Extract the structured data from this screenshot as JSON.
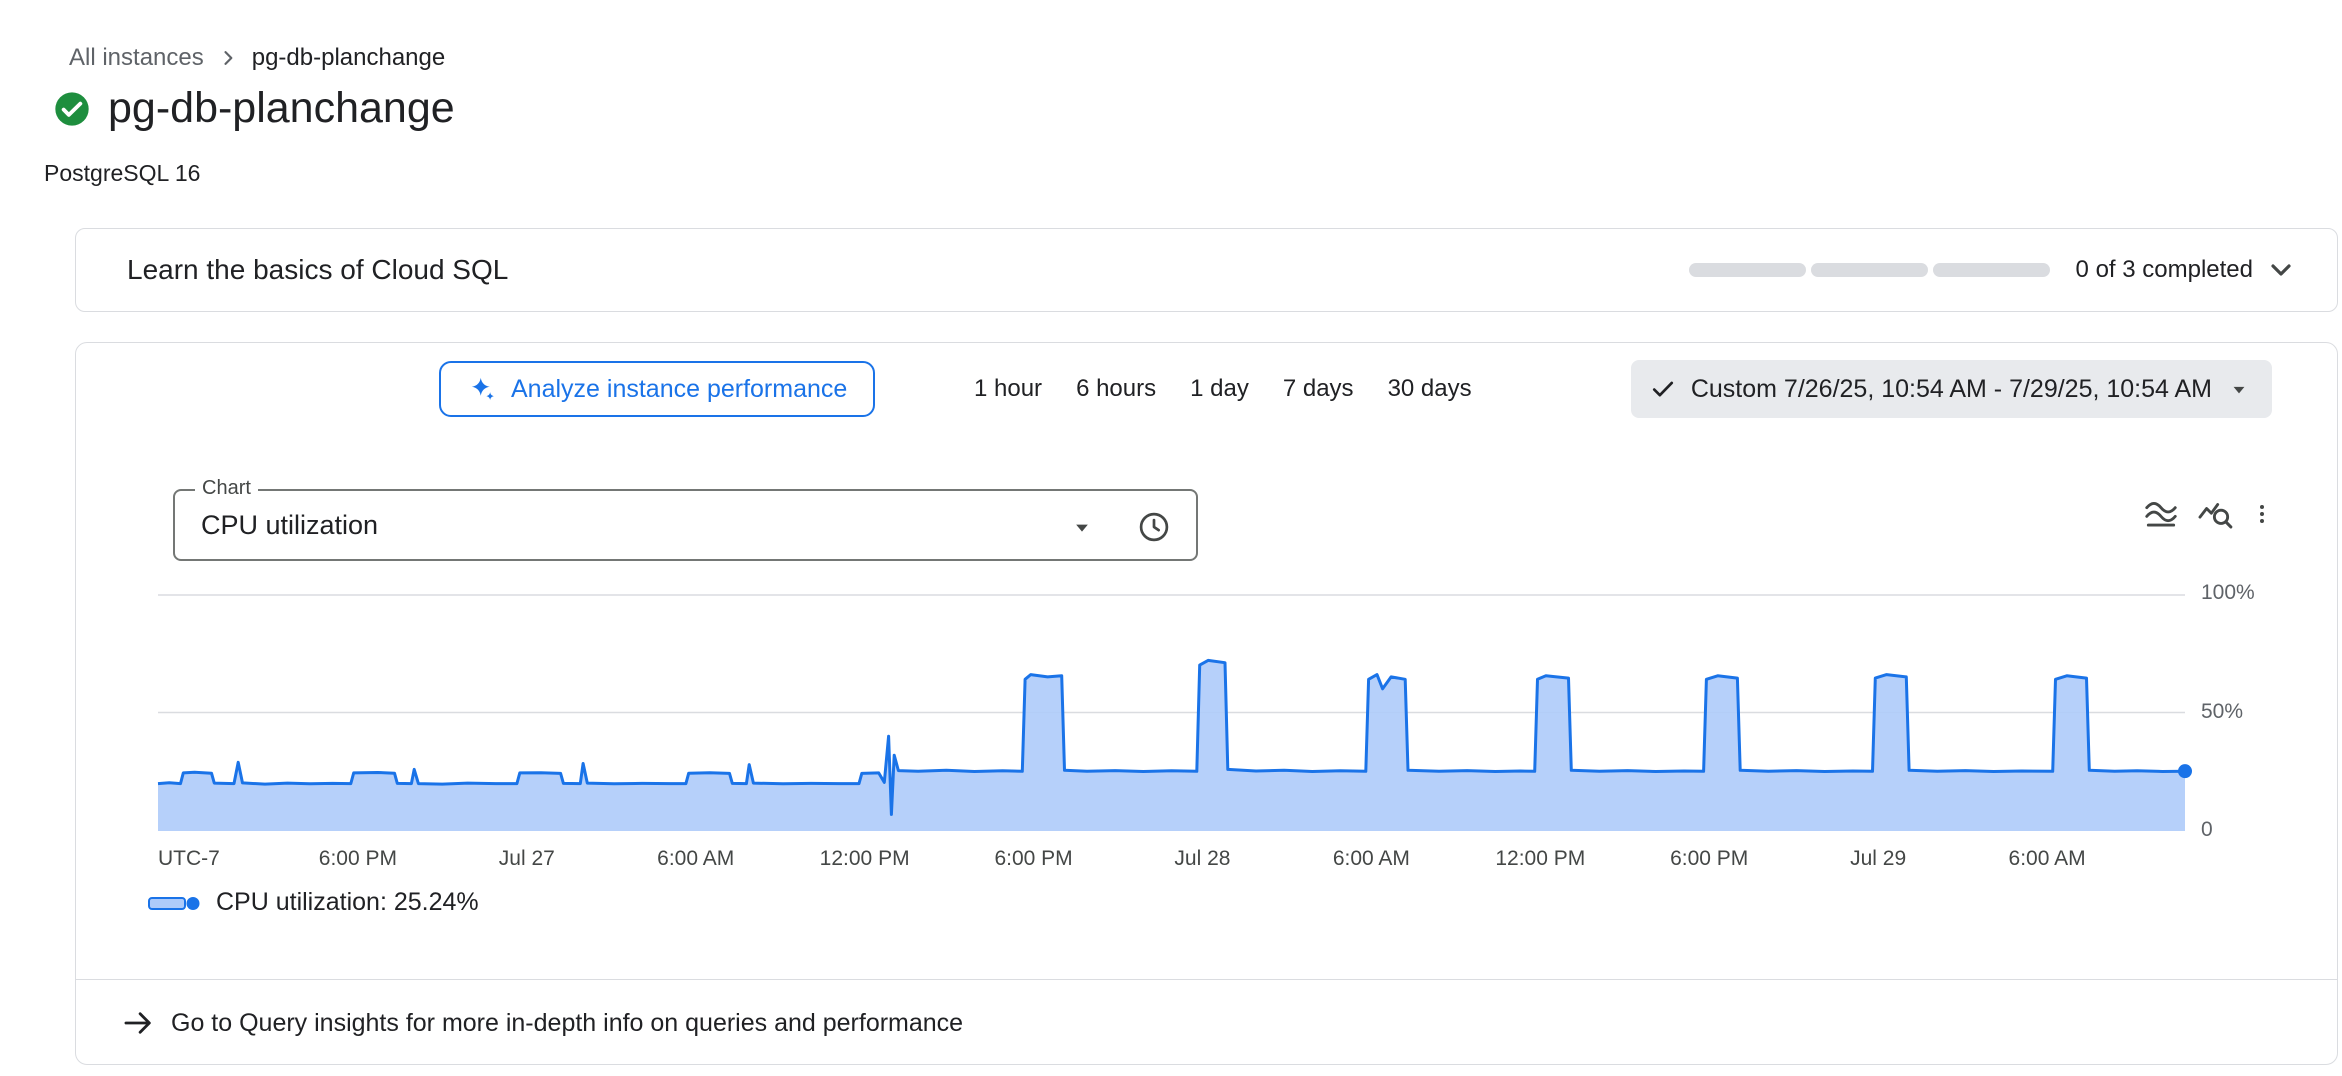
{
  "breadcrumb": {
    "parent": "All instances",
    "current": "pg-db-planchange"
  },
  "header": {
    "title": "pg-db-planchange",
    "subtitle": "PostgreSQL 16",
    "status": "running"
  },
  "learn_card": {
    "title": "Learn the basics of Cloud SQL",
    "progress_label": "0 of 3 completed",
    "segments_total": 3,
    "segments_completed": 0
  },
  "toolbar": {
    "analyze_label": "Analyze instance performance",
    "ranges": [
      "1 hour",
      "6 hours",
      "1 day",
      "7 days",
      "30 days"
    ],
    "custom_label": "Custom 7/26/25, 10:54 AM - 7/29/25, 10:54 AM"
  },
  "chart_controls": {
    "select_label": "Chart",
    "select_value": "CPU utilization"
  },
  "legend": {
    "label": "CPU utilization: 25.24%"
  },
  "insights": {
    "label": "Go to Query insights for more in-depth info on queries and performance"
  },
  "colors": {
    "accent_blue": "#1a73e8",
    "status_green": "#1e8e3e",
    "border_gray": "#dadce0",
    "text_gray": "#5f6368",
    "pill_gray": "#e8eaed"
  },
  "chart_data": {
    "type": "area",
    "title": "CPU utilization",
    "xlabel": "UTC-7",
    "ylabel": "CPU utilization (%)",
    "x_range_hours": [
      0,
      72
    ],
    "ylim": [
      0,
      100
    ],
    "grid": true,
    "legend_position": "bottom-left",
    "colors": {
      "line": "#1a73e8",
      "fill": "#aecbfa",
      "fill_opacity": 0.9,
      "grid": "#dadce0",
      "dot": "#1a73e8"
    },
    "yticks": [
      {
        "value": 100,
        "label": "100%"
      },
      {
        "value": 50,
        "label": "50%"
      },
      {
        "value": 0,
        "label": "0"
      }
    ],
    "xticks": [
      {
        "hours": 0,
        "label": "UTC-7"
      },
      {
        "hours": 7.1,
        "label": "6:00 PM"
      },
      {
        "hours": 13.1,
        "label": "Jul 27"
      },
      {
        "hours": 19.1,
        "label": "6:00 AM"
      },
      {
        "hours": 25.1,
        "label": "12:00 PM"
      },
      {
        "hours": 31.1,
        "label": "6:00 PM"
      },
      {
        "hours": 37.1,
        "label": "Jul 28"
      },
      {
        "hours": 43.1,
        "label": "6:00 AM"
      },
      {
        "hours": 49.1,
        "label": "12:00 PM"
      },
      {
        "hours": 55.1,
        "label": "6:00 PM"
      },
      {
        "hours": 61.1,
        "label": "Jul 29"
      },
      {
        "hours": 67.1,
        "label": "6:00 AM"
      }
    ],
    "series": [
      {
        "name": "CPU utilization",
        "current_value_label": "25.24%",
        "points": [
          [
            0,
            20
          ],
          [
            0.4,
            20.4
          ],
          [
            0.8,
            20
          ],
          [
            0.9,
            24.5
          ],
          [
            1.3,
            24.8
          ],
          [
            1.9,
            24.4
          ],
          [
            2.0,
            20.2
          ],
          [
            2.7,
            20
          ],
          [
            2.85,
            29
          ],
          [
            3.0,
            20.3
          ],
          [
            3.8,
            19.8
          ],
          [
            4.6,
            20.2
          ],
          [
            5.4,
            19.9
          ],
          [
            6.2,
            20.1
          ],
          [
            6.85,
            20
          ],
          [
            6.95,
            24.5
          ],
          [
            7.8,
            24.7
          ],
          [
            8.4,
            24.4
          ],
          [
            8.5,
            20.1
          ],
          [
            9.0,
            20
          ],
          [
            9.1,
            26
          ],
          [
            9.25,
            20
          ],
          [
            10.1,
            19.8
          ],
          [
            11.0,
            20.2
          ],
          [
            12.0,
            20
          ],
          [
            12.75,
            20
          ],
          [
            12.85,
            24.5
          ],
          [
            13.6,
            24.6
          ],
          [
            14.3,
            24.3
          ],
          [
            14.4,
            20.1
          ],
          [
            15.0,
            20
          ],
          [
            15.1,
            28.5
          ],
          [
            15.25,
            20.2
          ],
          [
            16.2,
            19.9
          ],
          [
            17.2,
            20.1
          ],
          [
            18.2,
            20
          ],
          [
            18.75,
            20
          ],
          [
            18.85,
            24.4
          ],
          [
            19.6,
            24.6
          ],
          [
            20.3,
            24.3
          ],
          [
            20.4,
            20.1
          ],
          [
            20.9,
            20
          ],
          [
            21.0,
            28
          ],
          [
            21.15,
            20.2
          ],
          [
            22.2,
            19.9
          ],
          [
            23.2,
            20.1
          ],
          [
            24.2,
            20
          ],
          [
            24.9,
            20
          ],
          [
            25.0,
            24.3
          ],
          [
            25.6,
            24.5
          ],
          [
            25.8,
            20.5
          ],
          [
            25.95,
            40
          ],
          [
            26.05,
            7
          ],
          [
            26.15,
            32
          ],
          [
            26.3,
            25.5
          ],
          [
            27.0,
            25.2
          ],
          [
            28.0,
            25.6
          ],
          [
            29.0,
            25.1
          ],
          [
            30.0,
            25.4
          ],
          [
            30.7,
            25.2
          ],
          [
            30.8,
            64
          ],
          [
            31.0,
            66
          ],
          [
            31.6,
            65
          ],
          [
            32.1,
            65.5
          ],
          [
            32.2,
            25.6
          ],
          [
            33.0,
            25.2
          ],
          [
            34.0,
            25.5
          ],
          [
            35.0,
            25.1
          ],
          [
            36.0,
            25.4
          ],
          [
            36.9,
            25.2
          ],
          [
            37.0,
            70
          ],
          [
            37.3,
            72
          ],
          [
            37.9,
            71
          ],
          [
            38.0,
            26
          ],
          [
            39.0,
            25.3
          ],
          [
            40.0,
            25.6
          ],
          [
            41.0,
            25.1
          ],
          [
            42.0,
            25.4
          ],
          [
            42.9,
            25.2
          ],
          [
            43.0,
            64
          ],
          [
            43.3,
            66
          ],
          [
            43.5,
            60
          ],
          [
            43.8,
            65
          ],
          [
            44.3,
            64
          ],
          [
            44.4,
            25.6
          ],
          [
            45.5,
            25.2
          ],
          [
            46.5,
            25.5
          ],
          [
            47.5,
            25.1
          ],
          [
            48.4,
            25.3
          ],
          [
            48.9,
            25.2
          ],
          [
            49.0,
            64
          ],
          [
            49.3,
            65.5
          ],
          [
            50.1,
            64.5
          ],
          [
            50.2,
            25.6
          ],
          [
            51.2,
            25.2
          ],
          [
            52.2,
            25.5
          ],
          [
            53.2,
            25.1
          ],
          [
            54.2,
            25.3
          ],
          [
            54.9,
            25.2
          ],
          [
            55.0,
            64
          ],
          [
            55.4,
            65.5
          ],
          [
            56.1,
            64.5
          ],
          [
            56.2,
            25.6
          ],
          [
            57.2,
            25.2
          ],
          [
            58.2,
            25.5
          ],
          [
            59.2,
            25.1
          ],
          [
            60.2,
            25.3
          ],
          [
            60.9,
            25.2
          ],
          [
            61.0,
            64.5
          ],
          [
            61.4,
            66
          ],
          [
            62.1,
            65
          ],
          [
            62.2,
            25.6
          ],
          [
            63.2,
            25.2
          ],
          [
            64.2,
            25.5
          ],
          [
            65.2,
            25.1
          ],
          [
            66.2,
            25.3
          ],
          [
            67.3,
            25.2
          ],
          [
            67.4,
            64
          ],
          [
            67.8,
            65.5
          ],
          [
            68.5,
            64.5
          ],
          [
            68.6,
            25.6
          ],
          [
            69.5,
            25.2
          ],
          [
            70.3,
            25.4
          ],
          [
            71.2,
            25.1
          ],
          [
            72,
            25.24
          ]
        ]
      }
    ]
  }
}
